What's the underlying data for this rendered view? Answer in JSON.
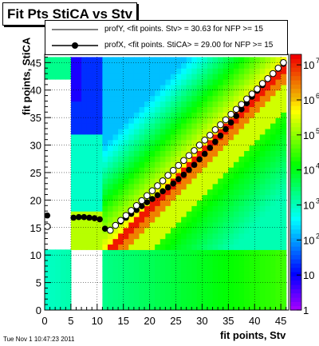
{
  "title": "Fit Pts StiCA vs Stv",
  "timestamp": "Tue Nov  1 10:47:23 2011",
  "chart_data": {
    "type": "heatmap",
    "xlabel": "fit points, Stv",
    "ylabel": "fit points, StiCA",
    "xlim": [
      0,
      46.5
    ],
    "ylim": [
      0,
      46.5
    ],
    "x_ticks": [
      0,
      5,
      10,
      15,
      20,
      25,
      30,
      35,
      40,
      45
    ],
    "y_ticks": [
      0,
      5,
      10,
      15,
      20,
      25,
      30,
      35,
      40,
      45
    ],
    "z_scale": "log",
    "z_ticks": [
      {
        "label": "1",
        "exp": 0
      },
      {
        "label": "10",
        "exp": 1
      },
      {
        "label": "10",
        "exp": 2
      },
      {
        "label": "10",
        "exp": 3
      },
      {
        "label": "10",
        "exp": 4
      },
      {
        "label": "10",
        "exp": 5
      },
      {
        "label": "10",
        "exp": 6
      },
      {
        "label": "10",
        "exp": 7
      }
    ],
    "grid": true,
    "legend_position": "top",
    "series": [
      {
        "name": "profY, <fit points. Stv> =   30.63 for NFP >= 15",
        "marker": "open-circle",
        "points": [
          [
            0.5,
            15.2
          ],
          [
            12.5,
            14.5
          ],
          [
            13.5,
            15.4
          ],
          [
            14.5,
            16.3
          ],
          [
            15.5,
            17.2
          ],
          [
            16.5,
            18.1
          ],
          [
            17.5,
            19.0
          ],
          [
            18.5,
            19.9
          ],
          [
            19.5,
            20.8
          ],
          [
            20.5,
            21.7
          ],
          [
            21.5,
            22.6
          ],
          [
            22.5,
            23.5
          ],
          [
            23.5,
            24.5
          ],
          [
            24.5,
            25.4
          ],
          [
            25.5,
            26.3
          ],
          [
            26.5,
            27.2
          ],
          [
            27.5,
            28.1
          ],
          [
            28.5,
            29.0
          ],
          [
            29.5,
            30.0
          ],
          [
            30.5,
            30.9
          ],
          [
            31.5,
            31.8
          ],
          [
            32.5,
            32.8
          ],
          [
            33.5,
            33.7
          ],
          [
            34.5,
            34.6
          ],
          [
            35.5,
            35.6
          ],
          [
            36.5,
            36.5
          ],
          [
            37.5,
            37.4
          ],
          [
            38.5,
            38.4
          ],
          [
            39.5,
            39.3
          ],
          [
            40.5,
            40.2
          ],
          [
            41.5,
            41.2
          ],
          [
            42.5,
            42.1
          ],
          [
            43.5,
            43.0
          ],
          [
            44.5,
            44.0
          ],
          [
            45.5,
            45.0
          ]
        ]
      },
      {
        "name": "profX, <fit points. StiCA> =   29.00 for NFP >= 15",
        "marker": "filled-circle",
        "points": [
          [
            0.5,
            17.2
          ],
          [
            5.5,
            16.8
          ],
          [
            6.5,
            16.9
          ],
          [
            7.5,
            16.9
          ],
          [
            8.5,
            16.8
          ],
          [
            9.5,
            16.7
          ],
          [
            10.5,
            16.5
          ],
          [
            11.5,
            14.8
          ],
          [
            12.5,
            14.6
          ],
          [
            13.5,
            15.4
          ],
          [
            14.5,
            16.1
          ],
          [
            15.5,
            16.8
          ],
          [
            16.5,
            17.5
          ],
          [
            17.5,
            18.2
          ],
          [
            18.5,
            18.9
          ],
          [
            19.5,
            19.6
          ],
          [
            20.5,
            20.2
          ],
          [
            21.5,
            20.9
          ],
          [
            22.5,
            21.6
          ],
          [
            23.5,
            22.3
          ],
          [
            24.5,
            23.0
          ],
          [
            25.5,
            23.8
          ],
          [
            26.5,
            24.6
          ],
          [
            27.5,
            25.5
          ],
          [
            28.5,
            26.4
          ],
          [
            29.5,
            27.4
          ],
          [
            30.5,
            28.4
          ],
          [
            31.5,
            29.5
          ],
          [
            32.5,
            30.6
          ],
          [
            33.5,
            31.7
          ],
          [
            34.5,
            32.9
          ],
          [
            35.5,
            34.1
          ],
          [
            36.5,
            35.3
          ],
          [
            37.5,
            36.5
          ],
          [
            38.5,
            37.6
          ],
          [
            39.5,
            38.8
          ],
          [
            40.5,
            39.9
          ],
          [
            41.5,
            40.9
          ],
          [
            42.5,
            42.0
          ],
          [
            43.5,
            43.0
          ],
          [
            44.5,
            43.9
          ],
          [
            45.5,
            44.8
          ]
        ]
      }
    ]
  }
}
